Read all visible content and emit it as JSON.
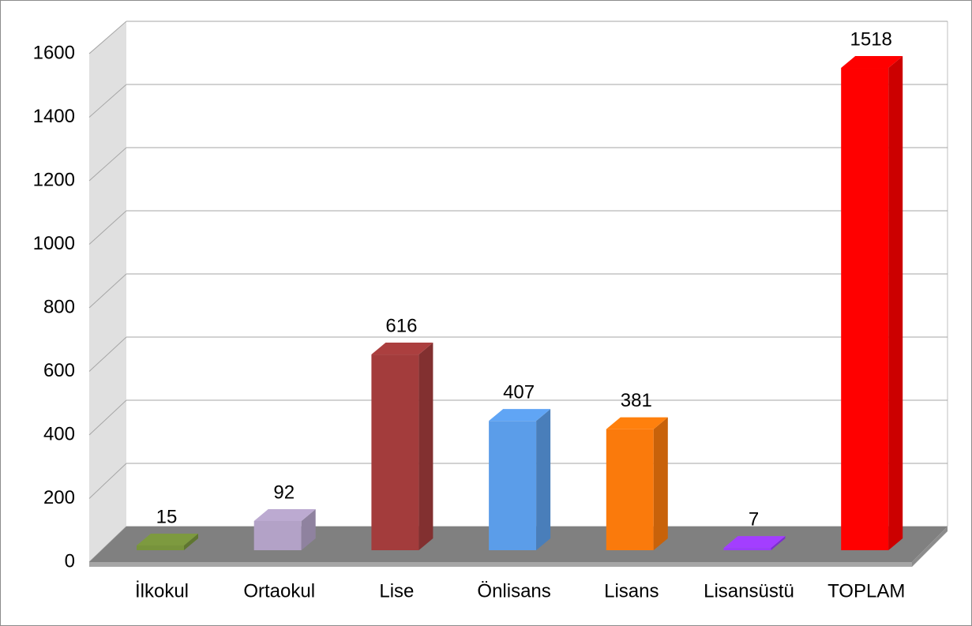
{
  "chart_data": {
    "type": "bar3d",
    "categories": [
      "İlkokul",
      "Ortaokul",
      "Lise",
      "Önlisans",
      "Lisans",
      "Lisansüstü",
      "TOPLAM"
    ],
    "values": [
      15,
      92,
      616,
      407,
      381,
      7,
      1518
    ],
    "colors": [
      "#77933c",
      "#b3a2c7",
      "#a33c3c",
      "#5b9de9",
      "#fa7a0c",
      "#9b3bff",
      "#ff0000"
    ],
    "ylim": [
      0,
      1600
    ],
    "yticks": [
      0,
      200,
      400,
      600,
      800,
      1000,
      1200,
      1400,
      1600
    ],
    "grid": true
  }
}
